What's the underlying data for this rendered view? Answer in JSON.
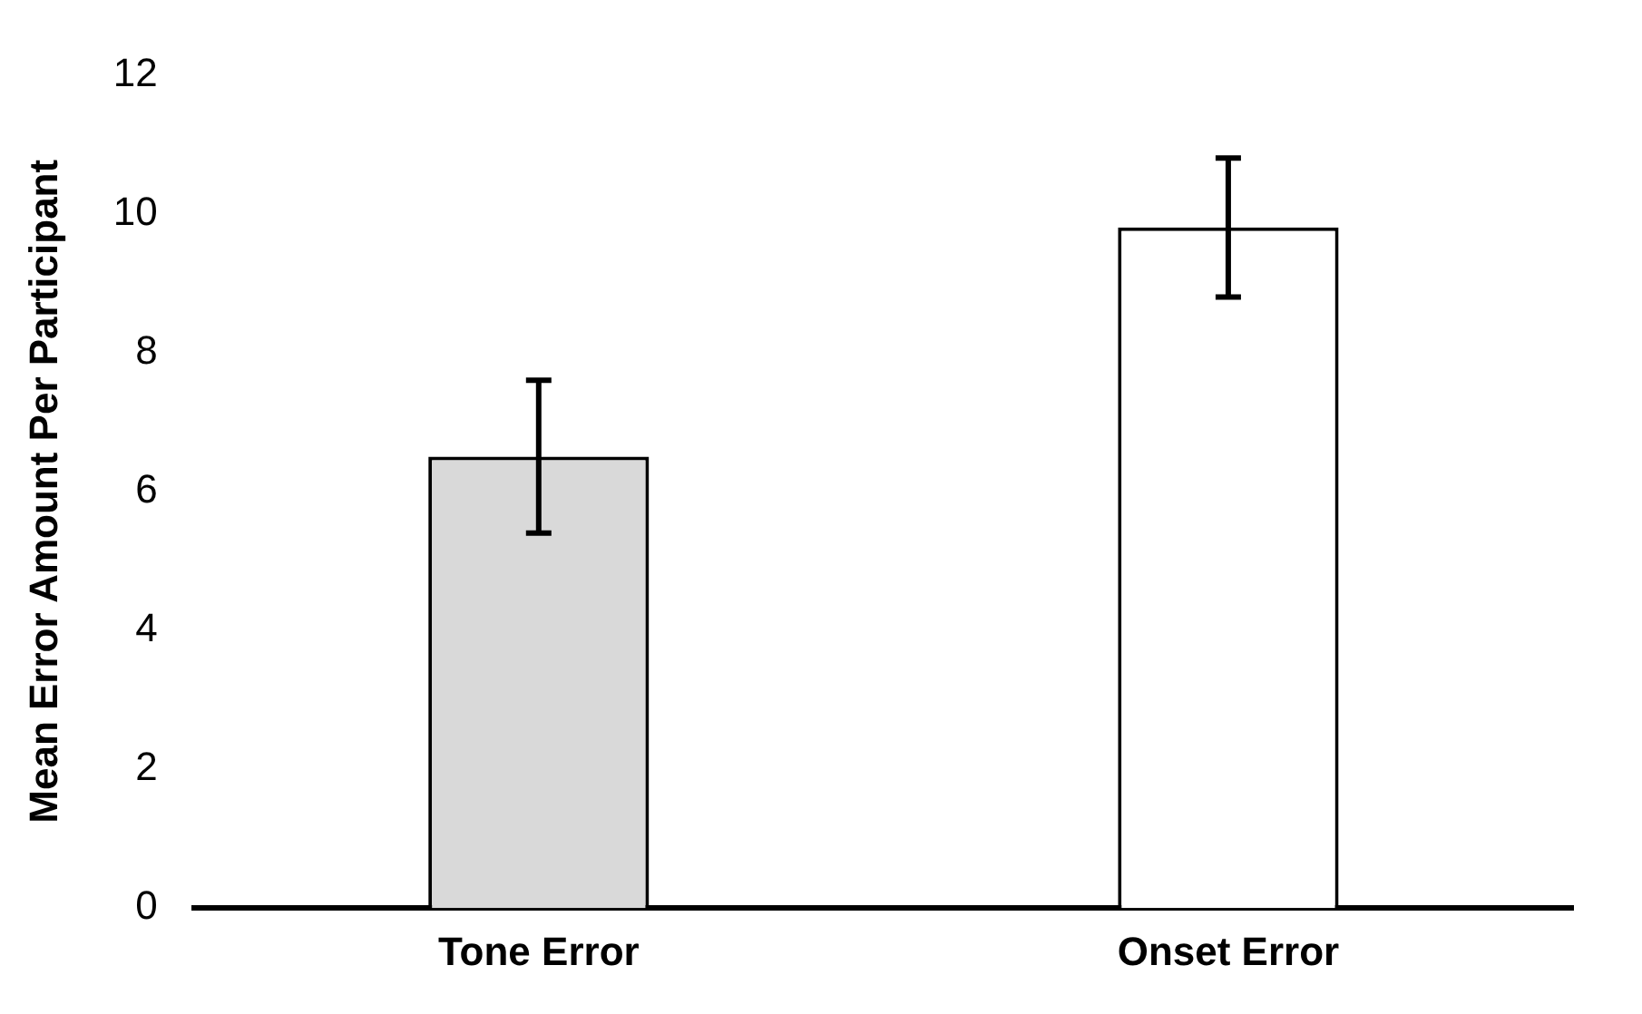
{
  "chart_data": {
    "type": "bar",
    "ylabel": "Mean Error Amount Per Participant",
    "categories": [
      "Tone Error",
      "Onset Error"
    ],
    "values": [
      6.5,
      9.8
    ],
    "colors": [
      "#d9d9d9",
      "#ffffff"
    ],
    "errors": [
      1.1,
      1.0
    ],
    "ylim": [
      0,
      12
    ],
    "yticks": [
      0,
      2,
      4,
      6,
      8,
      10,
      12
    ],
    "grid": false,
    "legend": false
  }
}
